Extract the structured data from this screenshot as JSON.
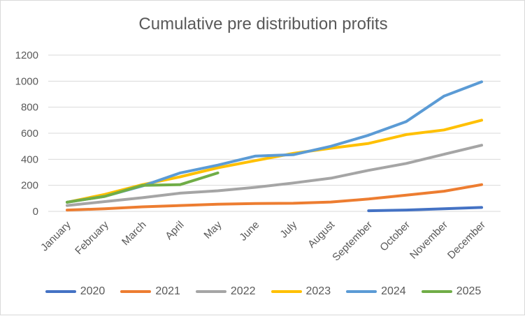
{
  "chart_data": {
    "type": "line",
    "title": "Cumulative pre distribution profits",
    "xlabel": "",
    "ylabel": "",
    "ylim": [
      0,
      1200
    ],
    "yticks": [
      0,
      200,
      400,
      600,
      800,
      1000,
      1200
    ],
    "grid": true,
    "legend_position": "bottom",
    "categories": [
      "January",
      "February",
      "March",
      "April",
      "May",
      "June",
      "July",
      "August",
      "September",
      "October",
      "November",
      "December"
    ],
    "series": [
      {
        "name": "2020",
        "color": "#4472c4",
        "values": [
          null,
          null,
          null,
          null,
          null,
          null,
          null,
          null,
          5,
          10,
          20,
          30
        ]
      },
      {
        "name": "2021",
        "color": "#ed7d31",
        "values": [
          10,
          20,
          35,
          45,
          55,
          60,
          62,
          72,
          95,
          125,
          155,
          205
        ]
      },
      {
        "name": "2022",
        "color": "#a5a5a5",
        "values": [
          45,
          75,
          105,
          140,
          158,
          185,
          218,
          255,
          315,
          368,
          438,
          508
        ]
      },
      {
        "name": "2023",
        "color": "#ffc000",
        "values": [
          70,
          130,
          205,
          265,
          335,
          390,
          445,
          485,
          522,
          590,
          625,
          700
        ]
      },
      {
        "name": "2024",
        "color": "#5b9bd5",
        "values": [
          70,
          115,
          195,
          295,
          355,
          425,
          435,
          500,
          585,
          690,
          885,
          995
        ]
      },
      {
        "name": "2025",
        "color": "#70ad47",
        "values": [
          70,
          115,
          200,
          205,
          295,
          null,
          null,
          null,
          null,
          null,
          null,
          null
        ]
      }
    ]
  }
}
